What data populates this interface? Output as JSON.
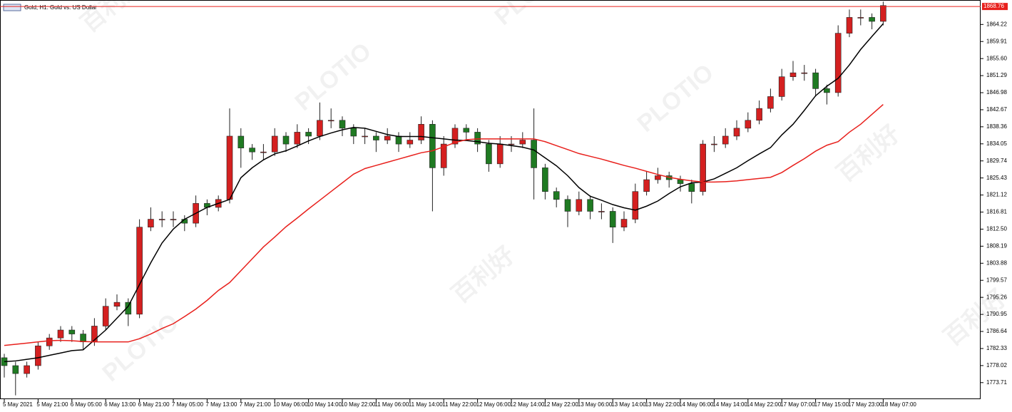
{
  "chart_data": {
    "type": "candlestick",
    "title": "Gold, H1: Gold vs. US Dollar",
    "watermark": [
      "百利好",
      "PLOTIO"
    ],
    "categories": [
      "5 May 2021",
      null,
      null,
      "5 May 21:00",
      null,
      null,
      "6 May 05:00",
      null,
      null,
      "6 May 13:00",
      null,
      null,
      "6 May 21:00",
      null,
      null,
      "7 May 05:00",
      null,
      null,
      "7 May 13:00",
      null,
      null,
      "7 May 21:00",
      null,
      null,
      "10 May 06:00",
      null,
      null,
      "10 May 14:00",
      null,
      null,
      "10 May 22:00",
      null,
      null,
      "11 May 06:00",
      null,
      null,
      "11 May 14:00",
      null,
      null,
      "11 May 22:00",
      null,
      null,
      "12 May 06:00",
      null,
      null,
      "12 May 14:00",
      null,
      null,
      "12 May 22:00",
      null,
      null,
      "13 May 06:00",
      null,
      null,
      "13 May 14:00",
      null,
      null,
      "13 May 22:00",
      null,
      null,
      "14 May 06:00",
      null,
      null,
      "14 May 14:00",
      null,
      null,
      "14 May 22:00",
      null,
      null,
      "17 May 07:00",
      null,
      null,
      "17 May 15:00",
      null,
      null,
      "17 May 23:00",
      null,
      null,
      "18 May 07:00"
    ],
    "open": [
      1780,
      1778,
      1776,
      1778,
      1783,
      1785,
      1787,
      1786,
      1784,
      1788,
      1793,
      1794,
      1791,
      1813,
      1815,
      1815,
      1815,
      1814,
      1819,
      1818,
      1820,
      1836,
      1833,
      1832,
      1832,
      1836,
      1834,
      1837,
      1836,
      1840,
      1840,
      1838,
      1836,
      1836,
      1835,
      1836,
      1834,
      1835,
      1839,
      1828,
      1834,
      1838,
      1837,
      1834,
      1829,
      1834,
      1834,
      1835,
      1828,
      1822,
      1820,
      1817,
      1820,
      1817,
      1817,
      1813,
      1815,
      1822,
      1825,
      1826,
      1825,
      1824,
      1822,
      1834,
      1834,
      1836,
      1838,
      1840,
      1843,
      1846,
      1851,
      1852,
      1852,
      1848,
      1847,
      1862,
      1866,
      1866,
      1865
    ],
    "high": [
      1781,
      1779,
      1779,
      1784,
      1786,
      1788,
      1788,
      1787,
      1790,
      1795,
      1796,
      1795,
      1815,
      1818,
      1817,
      1817,
      1816,
      1821,
      1820,
      1821,
      1843,
      1838,
      1834,
      1834,
      1838,
      1837,
      1839,
      1838,
      1844.5,
      1843,
      1841,
      1839,
      1838,
      1837,
      1838,
      1837,
      1837,
      1841,
      1840,
      1836,
      1839,
      1839,
      1838,
      1835,
      1836,
      1836,
      1837,
      1843,
      1829,
      1823,
      1821,
      1822,
      1821,
      1819,
      1818,
      1817,
      1824,
      1827,
      1828,
      1827,
      1826,
      1825,
      1835,
      1836,
      1838,
      1840,
      1842,
      1845,
      1848,
      1853,
      1855,
      1854,
      1853,
      1849,
      1864,
      1868,
      1868,
      1867,
      1870
    ],
    "low": [
      1775,
      1770.5,
      1775,
      1777,
      1782,
      1784,
      1784,
      1782,
      1783,
      1787,
      1792,
      1788,
      1790,
      1812,
      1813,
      1813,
      1812,
      1813,
      1816,
      1817,
      1819,
      1828,
      1830,
      1830,
      1831,
      1832,
      1833,
      1834,
      1835,
      1838,
      1836,
      1834,
      1834,
      1832,
      1834,
      1832,
      1833,
      1834,
      1817,
      1826,
      1833,
      1835,
      1832,
      1827,
      1828,
      1832,
      1833,
      1820,
      1820,
      1818,
      1813,
      1816,
      1815,
      1815,
      1809,
      1812,
      1814,
      1821,
      1824,
      1823,
      1822,
      1819,
      1821,
      1832,
      1833,
      1835,
      1837,
      1839,
      1842,
      1845,
      1850,
      1850,
      1846,
      1844,
      1846,
      1861,
      1864,
      1863,
      1864
    ],
    "close": [
      1778,
      1776,
      1778,
      1783,
      1785,
      1787,
      1786,
      1784,
      1788,
      1793,
      1794,
      1791,
      1813,
      1815,
      1815,
      1815,
      1814,
      1819,
      1818,
      1820,
      1836,
      1833,
      1832,
      1832,
      1836,
      1834,
      1837,
      1836,
      1840,
      1840,
      1838,
      1836,
      1836,
      1835,
      1836,
      1834,
      1835,
      1839,
      1828,
      1834,
      1838,
      1837,
      1834,
      1829,
      1834,
      1834,
      1835,
      1828,
      1822,
      1820,
      1817,
      1820,
      1817,
      1817,
      1813,
      1815,
      1822,
      1825,
      1826,
      1825,
      1824,
      1822,
      1834,
      1834,
      1836,
      1838,
      1840,
      1843,
      1846,
      1851,
      1852,
      1852,
      1848,
      1847,
      1862,
      1866,
      1866,
      1865,
      1869
    ],
    "up_color": "#d42020",
    "down_color": "#1f7a22",
    "ma": [
      {
        "color": "#000000",
        "values": [
          1779,
          1779.2,
          1779.6,
          1780,
          1780.6,
          1781.2,
          1781.8,
          1782,
          1784.5,
          1787,
          1790,
          1793,
          1798.5,
          1804,
          1809,
          1812.5,
          1815,
          1816.5,
          1818,
          1819,
          1820,
          1825.5,
          1828,
          1830,
          1831.5,
          1832.3,
          1833.5,
          1834.8,
          1835.9,
          1836.8,
          1837.6,
          1838.2,
          1838,
          1837.2,
          1836.4,
          1835.9,
          1835.9,
          1835.9,
          1835.6,
          1835.3,
          1835,
          1834.9,
          1834.6,
          1834.2,
          1834,
          1833.6,
          1833.2,
          1832.5,
          1830.5,
          1828.5,
          1826,
          1823,
          1820.8,
          1819.8,
          1818.7,
          1817.9,
          1817.3,
          1818.3,
          1819.6,
          1821.5,
          1823.2,
          1824.2,
          1824.4,
          1825.2,
          1826.6,
          1828,
          1829.8,
          1831.5,
          1833.1,
          1836.3,
          1839,
          1842.5,
          1846.2,
          1848.6,
          1850.6,
          1854,
          1857.9,
          1861.2,
          1864.4
        ]
      },
      {
        "color": "#e8201c",
        "values": [
          1783.1,
          1783.4,
          1783.7,
          1784,
          1784.3,
          1784.4,
          1784.3,
          1784.1,
          1784,
          1784,
          1784,
          1784,
          1784.8,
          1786,
          1787.4,
          1788.6,
          1790.4,
          1792.3,
          1794.5,
          1797,
          1799,
          1802,
          1805,
          1808,
          1810.5,
          1813.1,
          1815.3,
          1817.6,
          1819.8,
          1822,
          1824.2,
          1826.4,
          1827.8,
          1828.6,
          1829.4,
          1830.2,
          1831,
          1831.8,
          1832.3,
          1833.3,
          1834.4,
          1835.1,
          1835.3,
          1835.3,
          1835.3,
          1835.3,
          1835.3,
          1835.3,
          1834.6,
          1833.6,
          1832.6,
          1831.6,
          1830.9,
          1830.2,
          1829.4,
          1828.6,
          1827.9,
          1827.1,
          1826.3,
          1825.6,
          1825.1,
          1824.7,
          1824.4,
          1824.4,
          1824.5,
          1824.7,
          1825,
          1825.3,
          1825.6,
          1826.8,
          1828.6,
          1830.3,
          1832.2,
          1833.7,
          1834.6,
          1837,
          1839,
          1841.5,
          1844
        ]
      }
    ],
    "last_price": 1868.76,
    "last_price_color": "#e8201c",
    "ylim": [
      1769.53,
      1870.4
    ],
    "yticks": [
      1773.71,
      1778.02,
      1782.33,
      1786.64,
      1790.95,
      1795.26,
      1799.57,
      1803.88,
      1808.19,
      {
        "value": 1812.5,
        "label": "1812.50"
      },
      1816.81,
      1821.12,
      1825.43,
      1829.74,
      1834.05,
      1838.36,
      1842.67,
      1846.98,
      1851.29,
      {
        "value": 1855.6,
        "label": "1855.60"
      },
      1859.91,
      1864.22
    ]
  }
}
